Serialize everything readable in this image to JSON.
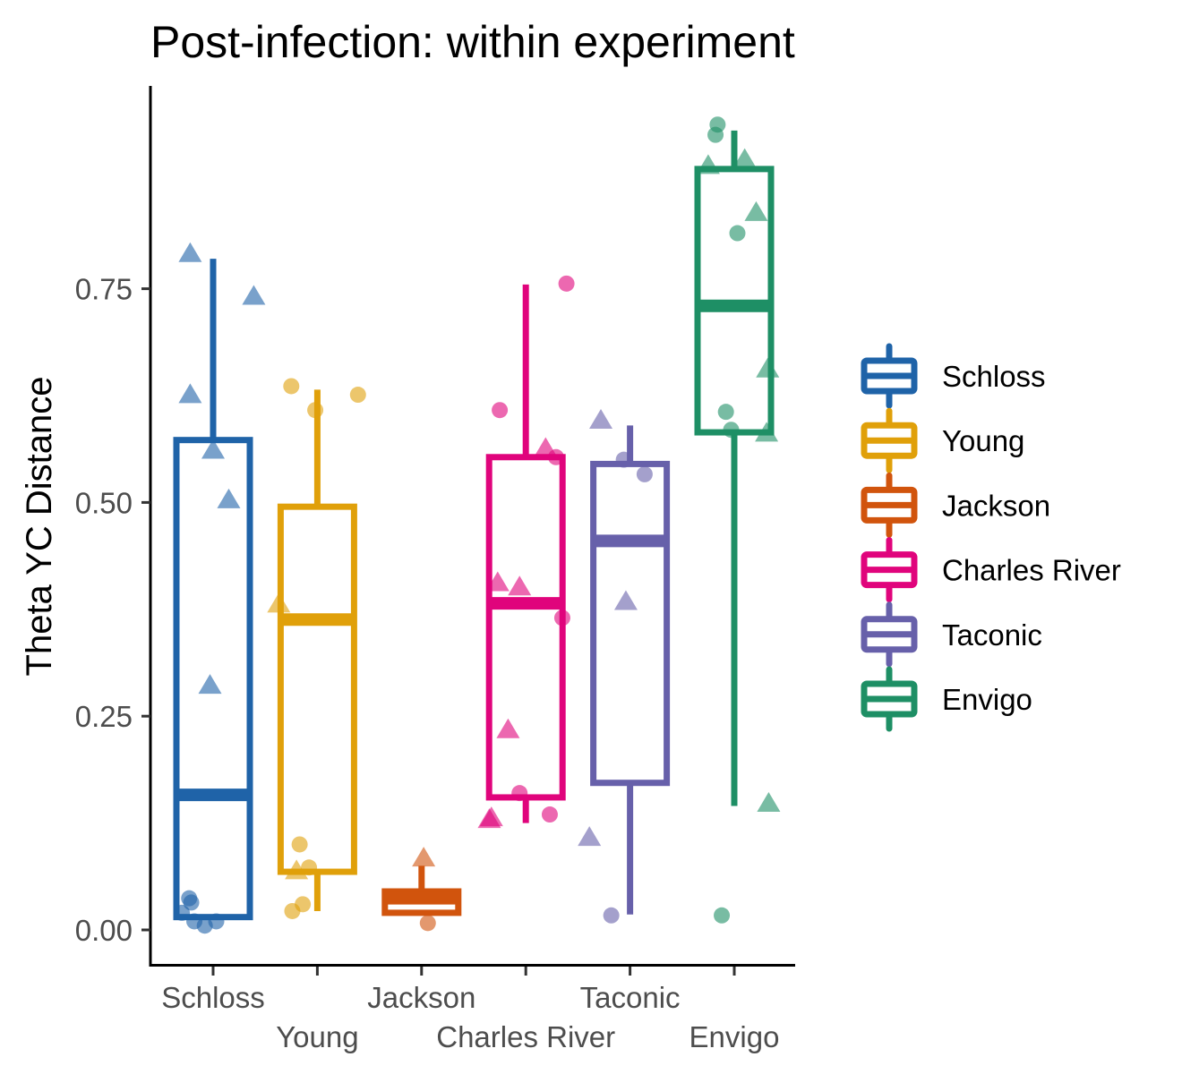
{
  "chart_data": {
    "type": "box",
    "title": "Post-infection: within experiment",
    "xlabel": "",
    "ylabel": "Theta YC Distance",
    "ylim": [
      -0.04,
      0.99
    ],
    "yticks": [
      0.0,
      0.25,
      0.5,
      0.75
    ],
    "ytick_labels": [
      "0.00",
      "0.25",
      "0.50",
      "0.75"
    ],
    "categories": [
      "Schloss",
      "Young",
      "Jackson",
      "Charles River",
      "Taconic",
      "Envigo"
    ],
    "legend": {
      "position": "right",
      "title": ""
    },
    "grid": false,
    "series": [
      {
        "name": "Schloss",
        "color": "#1F63A8",
        "box": {
          "whisker_low": 0.015,
          "q1": 0.015,
          "median": 0.158,
          "q3": 0.573,
          "whisker_high": 0.785
        },
        "points": [
          {
            "dx": -0.22,
            "y": 0.79,
            "shape": "triangle"
          },
          {
            "dx": 0.39,
            "y": 0.74,
            "shape": "triangle"
          },
          {
            "dx": -0.22,
            "y": 0.625,
            "shape": "triangle"
          },
          {
            "dx": 0.0,
            "y": 0.56,
            "shape": "triangle"
          },
          {
            "dx": 0.15,
            "y": 0.502,
            "shape": "triangle"
          },
          {
            "dx": -0.03,
            "y": 0.285,
            "shape": "triangle"
          },
          {
            "dx": -0.23,
            "y": 0.037,
            "shape": "circle"
          },
          {
            "dx": -0.21,
            "y": 0.032,
            "shape": "circle"
          },
          {
            "dx": -0.3,
            "y": 0.02,
            "shape": "circle"
          },
          {
            "dx": -0.18,
            "y": 0.01,
            "shape": "circle"
          },
          {
            "dx": -0.08,
            "y": 0.005,
            "shape": "circle"
          },
          {
            "dx": 0.03,
            "y": 0.01,
            "shape": "circle"
          }
        ]
      },
      {
        "name": "Young",
        "color": "#E0A00A",
        "box": {
          "whisker_low": 0.022,
          "q1": 0.068,
          "median": 0.363,
          "q3": 0.495,
          "whisker_high": 0.632
        },
        "points": [
          {
            "dx": -0.25,
            "y": 0.636,
            "shape": "circle"
          },
          {
            "dx": 0.39,
            "y": 0.626,
            "shape": "circle"
          },
          {
            "dx": -0.02,
            "y": 0.608,
            "shape": "circle"
          },
          {
            "dx": -0.37,
            "y": 0.38,
            "shape": "triangle"
          },
          {
            "dx": -0.17,
            "y": 0.1,
            "shape": "circle"
          },
          {
            "dx": -0.2,
            "y": 0.068,
            "shape": "triangle"
          },
          {
            "dx": -0.08,
            "y": 0.073,
            "shape": "circle"
          },
          {
            "dx": -0.24,
            "y": 0.022,
            "shape": "circle"
          },
          {
            "dx": -0.14,
            "y": 0.03,
            "shape": "circle"
          }
        ]
      },
      {
        "name": "Jackson",
        "color": "#D1540D",
        "box": {
          "whisker_low": 0.02,
          "q1": 0.02,
          "median": 0.037,
          "q3": 0.045,
          "whisker_high": 0.075
        },
        "points": [
          {
            "dx": 0.02,
            "y": 0.083,
            "shape": "triangle"
          },
          {
            "dx": 0.06,
            "y": 0.008,
            "shape": "circle"
          }
        ]
      },
      {
        "name": "Charles River",
        "color": "#E0047C",
        "box": {
          "whisker_low": 0.125,
          "q1": 0.155,
          "median": 0.382,
          "q3": 0.553,
          "whisker_high": 0.755
        },
        "points": [
          {
            "dx": 0.39,
            "y": 0.756,
            "shape": "circle"
          },
          {
            "dx": -0.25,
            "y": 0.608,
            "shape": "circle"
          },
          {
            "dx": 0.19,
            "y": 0.562,
            "shape": "triangle"
          },
          {
            "dx": 0.29,
            "y": 0.553,
            "shape": "circle"
          },
          {
            "dx": -0.27,
            "y": 0.405,
            "shape": "triangle"
          },
          {
            "dx": -0.06,
            "y": 0.4,
            "shape": "triangle"
          },
          {
            "dx": 0.35,
            "y": 0.365,
            "shape": "circle"
          },
          {
            "dx": -0.17,
            "y": 0.233,
            "shape": "triangle"
          },
          {
            "dx": -0.06,
            "y": 0.16,
            "shape": "circle"
          },
          {
            "dx": -0.33,
            "y": 0.13,
            "shape": "triangle"
          },
          {
            "dx": -0.35,
            "y": 0.128,
            "shape": "triangle"
          },
          {
            "dx": 0.23,
            "y": 0.135,
            "shape": "circle"
          }
        ]
      },
      {
        "name": "Taconic",
        "color": "#6760AA",
        "box": {
          "whisker_low": 0.018,
          "q1": 0.172,
          "median": 0.455,
          "q3": 0.545,
          "whisker_high": 0.59
        },
        "points": [
          {
            "dx": -0.28,
            "y": 0.595,
            "shape": "triangle"
          },
          {
            "dx": -0.06,
            "y": 0.55,
            "shape": "circle"
          },
          {
            "dx": 0.14,
            "y": 0.533,
            "shape": "circle"
          },
          {
            "dx": -0.04,
            "y": 0.383,
            "shape": "triangle"
          },
          {
            "dx": -0.39,
            "y": 0.107,
            "shape": "triangle"
          },
          {
            "dx": -0.18,
            "y": 0.017,
            "shape": "circle"
          }
        ]
      },
      {
        "name": "Envigo",
        "color": "#1E8F65",
        "box": {
          "whisker_low": 0.145,
          "q1": 0.582,
          "median": 0.73,
          "q3": 0.89,
          "whisker_high": 0.935
        },
        "points": [
          {
            "dx": -0.16,
            "y": 0.942,
            "shape": "circle"
          },
          {
            "dx": -0.18,
            "y": 0.93,
            "shape": "circle"
          },
          {
            "dx": 0.1,
            "y": 0.9,
            "shape": "triangle"
          },
          {
            "dx": -0.25,
            "y": 0.893,
            "shape": "triangle"
          },
          {
            "dx": 0.21,
            "y": 0.838,
            "shape": "triangle"
          },
          {
            "dx": 0.03,
            "y": 0.815,
            "shape": "circle"
          },
          {
            "dx": 0.32,
            "y": 0.655,
            "shape": "triangle"
          },
          {
            "dx": -0.08,
            "y": 0.606,
            "shape": "circle"
          },
          {
            "dx": -0.03,
            "y": 0.585,
            "shape": "circle"
          },
          {
            "dx": 0.31,
            "y": 0.58,
            "shape": "triangle"
          },
          {
            "dx": 0.33,
            "y": 0.147,
            "shape": "triangle"
          },
          {
            "dx": -0.12,
            "y": 0.017,
            "shape": "circle"
          }
        ]
      }
    ]
  }
}
